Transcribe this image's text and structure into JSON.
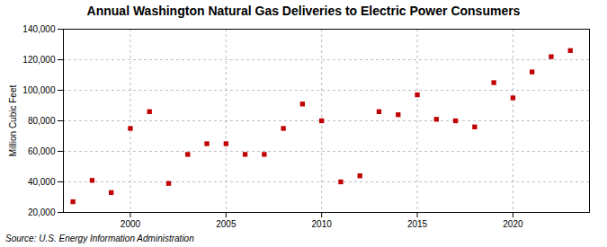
{
  "chart_data": {
    "type": "scatter",
    "title": "Annual Washington Natural Gas Deliveries to Electric Power Consumers",
    "ylabel": "Million Cubic Feet",
    "source": "Source: U.S. Energy Information Administration",
    "x": [
      1997,
      1998,
      1999,
      2000,
      2001,
      2002,
      2003,
      2004,
      2005,
      2006,
      2007,
      2008,
      2009,
      2010,
      2011,
      2012,
      2013,
      2014,
      2015,
      2016,
      2017,
      2018,
      2019,
      2020,
      2021,
      2022,
      2023
    ],
    "values": [
      27000,
      41000,
      33000,
      75000,
      86000,
      39000,
      58000,
      65000,
      65000,
      58000,
      58000,
      75000,
      91000,
      80000,
      40000,
      44000,
      86000,
      84000,
      97000,
      81000,
      80000,
      76000,
      105000,
      95000,
      112000,
      122000,
      126000
    ],
    "color": "#c00000",
    "marker": "square",
    "xlim": [
      1996.5,
      2024
    ],
    "xticks": [
      2000,
      2005,
      2010,
      2015,
      2020
    ],
    "ylim": [
      20000,
      140000
    ],
    "yticks": [
      {
        "value": 20000,
        "label": "20,000"
      },
      {
        "value": 40000,
        "label": "40,000"
      },
      {
        "value": 60000,
        "label": "60,000"
      },
      {
        "value": 80000,
        "label": "80,000"
      },
      {
        "value": 100000,
        "label": "100,000"
      },
      {
        "value": 120000,
        "label": "120,000"
      },
      {
        "value": 140000,
        "label": "140,000"
      }
    ],
    "grid": true
  }
}
